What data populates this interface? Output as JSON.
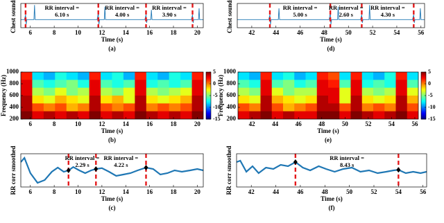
{
  "chart_data": [
    {
      "type": "line",
      "ylabel": "Chest sounds",
      "xlabel": "Time (s)",
      "caption": "(a)",
      "color": "#1f77b4",
      "xlim": [
        5.2,
        20.5
      ],
      "xticks": [
        6,
        8,
        10,
        12,
        14,
        16,
        18,
        20
      ],
      "ylim": [
        -0.5,
        1
      ],
      "x": [
        5.2,
        5.5,
        5.6,
        5.65,
        5.7,
        6.0,
        6.3,
        6.35,
        6.4,
        7,
        8,
        9,
        10,
        11,
        11.6,
        11.7,
        11.75,
        11.8,
        12.2,
        12.25,
        12.3,
        13,
        14,
        15,
        15.6,
        15.7,
        15.75,
        15.8,
        16.1,
        16.15,
        16.2,
        17,
        18,
        19,
        19.5,
        19.6,
        19.65,
        19.7,
        20.1,
        20.15,
        20.2,
        20.5
      ],
      "values": [
        0,
        0,
        0.3,
        -0.3,
        0,
        0,
        0,
        0.9,
        0,
        0,
        0,
        0,
        0,
        0,
        0,
        0.4,
        -0.3,
        0,
        0,
        0.8,
        0,
        0,
        0,
        0,
        0,
        0.3,
        -0.2,
        0,
        0,
        0.6,
        0,
        0,
        0,
        0,
        0,
        0.3,
        -0.2,
        0,
        0,
        0.7,
        0,
        0
      ],
      "rr_lines": [
        5.6,
        11.7,
        15.7,
        19.6
      ],
      "annotations": [
        [
          "RR interval =",
          "6.10 s"
        ],
        [
          "RR interval =",
          "4.00 s"
        ],
        [
          "RR interval =",
          "3.90 s"
        ]
      ]
    },
    {
      "type": "heatmap",
      "ylabel": "Frequency (Hz)",
      "xlabel": "Time (s)",
      "caption": "(b)",
      "xlim": [
        5.2,
        20.5
      ],
      "xticks": [
        6,
        8,
        10,
        12,
        14,
        16,
        18,
        20
      ],
      "ylim": [
        200,
        1000
      ],
      "yticks": [
        200,
        400,
        600,
        800,
        1000
      ],
      "clim": [
        -15,
        5
      ],
      "cticks": [
        5,
        0,
        -5,
        -10,
        -15
      ],
      "z": [
        [
          2,
          -8,
          -9,
          -7,
          -8,
          -9,
          2,
          -8,
          -7,
          -9,
          2,
          -8,
          -9,
          -7,
          -8,
          2
        ],
        [
          3,
          -6,
          -7,
          -6,
          -5,
          -7,
          3,
          -6,
          -7,
          -6,
          3,
          -7,
          -6,
          -7,
          -6,
          3
        ],
        [
          3,
          -4,
          -5,
          -3,
          -5,
          -4,
          3,
          -4,
          -5,
          -3,
          3,
          -4,
          -5,
          -4,
          -3,
          3
        ],
        [
          4,
          -2,
          -3,
          -1,
          -2,
          -3,
          4,
          -2,
          -1,
          -3,
          4,
          -2,
          -3,
          -2,
          -1,
          4
        ],
        [
          4,
          1,
          0,
          1,
          -1,
          0,
          4,
          1,
          0,
          1,
          4,
          0,
          1,
          0,
          1,
          4
        ],
        [
          5,
          3,
          4,
          3,
          4,
          3,
          5,
          3,
          4,
          3,
          5,
          4,
          3,
          4,
          3,
          5
        ]
      ]
    },
    {
      "type": "line",
      "ylabel": "RR corr smoothed",
      "xlabel": "Time (s)",
      "caption": "(c)",
      "color": "#1f77b4",
      "xlim": [
        5.2,
        20.5
      ],
      "xticks": [
        6,
        8,
        10,
        12,
        14,
        16,
        18,
        20
      ],
      "ylim": [
        -0.6,
        0.6
      ],
      "x": [
        5.2,
        5.5,
        6.0,
        6.6,
        7.2,
        7.8,
        8.3,
        8.8,
        9.2,
        9.6,
        10.1,
        10.6,
        11.1,
        11.5,
        12.0,
        12.6,
        13.2,
        13.8,
        14.4,
        15.0,
        15.7,
        16.3,
        16.9,
        17.5,
        18.1,
        18.7,
        19.4,
        20.0,
        20.5
      ],
      "values": [
        0.3,
        0.45,
        -0.1,
        -0.45,
        -0.35,
        -0.05,
        0.1,
        -0.05,
        0.0,
        0.12,
        0.0,
        -0.1,
        0.0,
        0.05,
        0.08,
        -0.05,
        -0.2,
        -0.15,
        -0.1,
        0.0,
        0.1,
        0.05,
        -0.15,
        -0.1,
        0.0,
        -0.05,
        0.0,
        0.05,
        0.0
      ],
      "rr_lines": [
        9.2,
        11.5,
        15.7
      ],
      "peaks": [
        0.0,
        0.05,
        0.1
      ],
      "annotations": [
        [
          "RR interval =",
          "2.29 s"
        ],
        [
          "RR interval =",
          "4.22 s"
        ]
      ]
    },
    {
      "type": "line",
      "ylabel": "Chest sounds",
      "xlabel": "Time (s)",
      "caption": "(d)",
      "color": "#1f77b4",
      "xlim": [
        40.8,
        56.3
      ],
      "xticks": [
        42,
        44,
        46,
        48,
        50,
        52,
        54,
        56
      ],
      "ylim": [
        -0.5,
        1
      ],
      "x": [
        40.8,
        41.5,
        42,
        43,
        43.4,
        43.5,
        43.55,
        43.6,
        44.2,
        44.25,
        44.3,
        45,
        46,
        47,
        48.4,
        48.5,
        48.55,
        48.6,
        49.1,
        49.15,
        49.2,
        50,
        51,
        51.1,
        51.15,
        51.2,
        51.7,
        51.75,
        51.8,
        53,
        54,
        55.3,
        55.4,
        55.45,
        55.5,
        55.9,
        55.95,
        56,
        56.3
      ],
      "values": [
        0,
        0,
        0,
        0,
        0,
        0.3,
        -0.3,
        0,
        0,
        0.7,
        0,
        0,
        0,
        0,
        0,
        0.4,
        -0.3,
        0,
        0,
        0.8,
        0,
        0,
        0,
        0.3,
        -0.2,
        0,
        0,
        0.9,
        0,
        0,
        0,
        0,
        0.3,
        -0.2,
        0,
        0,
        0.7,
        0,
        0
      ],
      "rr_lines": [
        43.5,
        48.5,
        51.1,
        55.4
      ],
      "annotations": [
        [
          "RR interval =",
          "5.00 s"
        ],
        [
          "RR interval =",
          "2.60 s"
        ],
        [
          "RR interval =",
          "4.30 s"
        ]
      ]
    },
    {
      "type": "heatmap",
      "ylabel": "Frequency (Hz)",
      "xlabel": "Time (s)",
      "caption": "(e)",
      "xlim": [
        40.8,
        56.3
      ],
      "xticks": [
        42,
        44,
        46,
        48,
        50,
        52,
        54,
        56
      ],
      "ylim": [
        200,
        1000
      ],
      "yticks": [
        200,
        400,
        600,
        800,
        1000
      ],
      "clim": [
        -15,
        5
      ],
      "cticks": [
        5,
        0,
        -5,
        -10,
        -15
      ],
      "z": [
        [
          -8,
          -9,
          2,
          -8,
          -7,
          -9,
          -8,
          2,
          1,
          -8,
          2,
          -8,
          -9,
          -7,
          2,
          -8
        ],
        [
          -6,
          -7,
          3,
          -6,
          -5,
          -7,
          -6,
          3,
          2,
          -6,
          3,
          -7,
          -6,
          -7,
          3,
          -6
        ],
        [
          -4,
          -5,
          3,
          -3,
          -5,
          -4,
          -4,
          3,
          3,
          -3,
          3,
          -4,
          -5,
          -4,
          3,
          -3
        ],
        [
          -2,
          -3,
          4,
          -1,
          -2,
          -3,
          -2,
          4,
          3,
          -3,
          4,
          -2,
          -3,
          -2,
          4,
          -1
        ],
        [
          1,
          0,
          4,
          1,
          -1,
          0,
          1,
          4,
          4,
          1,
          4,
          0,
          1,
          0,
          4,
          1
        ],
        [
          3,
          4,
          5,
          3,
          4,
          3,
          3,
          5,
          5,
          3,
          5,
          4,
          3,
          4,
          5,
          3
        ]
      ]
    },
    {
      "type": "line",
      "ylabel": "RR corr smoothed",
      "xlabel": "Time (s)",
      "caption": "(f)",
      "color": "#1f77b4",
      "xlim": [
        40.8,
        56.3
      ],
      "xticks": [
        42,
        44,
        46,
        48,
        50,
        52,
        54,
        56
      ],
      "ylim": [
        -0.6,
        0.6
      ],
      "x": [
        40.8,
        41.1,
        41.6,
        42.1,
        42.6,
        43.2,
        43.8,
        44.4,
        45.0,
        45.6,
        46.2,
        46.8,
        47.5,
        48.1,
        48.8,
        49.5,
        50.2,
        50.9,
        51.6,
        52.3,
        53.0,
        53.6,
        54.0,
        54.6,
        55.2,
        55.8,
        56.3
      ],
      "values": [
        0.3,
        0.35,
        -0.05,
        0.15,
        -0.1,
        0.1,
        0.05,
        0.2,
        0.15,
        0.3,
        0.1,
        0.0,
        0.15,
        0.05,
        -0.05,
        0.05,
        0.1,
        -0.05,
        0.0,
        -0.1,
        -0.05,
        0.0,
        0.02,
        -0.1,
        -0.05,
        -0.1,
        -0.05
      ],
      "rr_lines": [
        45.6,
        54.0
      ],
      "peaks": [
        0.3,
        0.02
      ],
      "annotations": [
        [
          "RR interval =",
          "8.43 s"
        ]
      ]
    }
  ]
}
